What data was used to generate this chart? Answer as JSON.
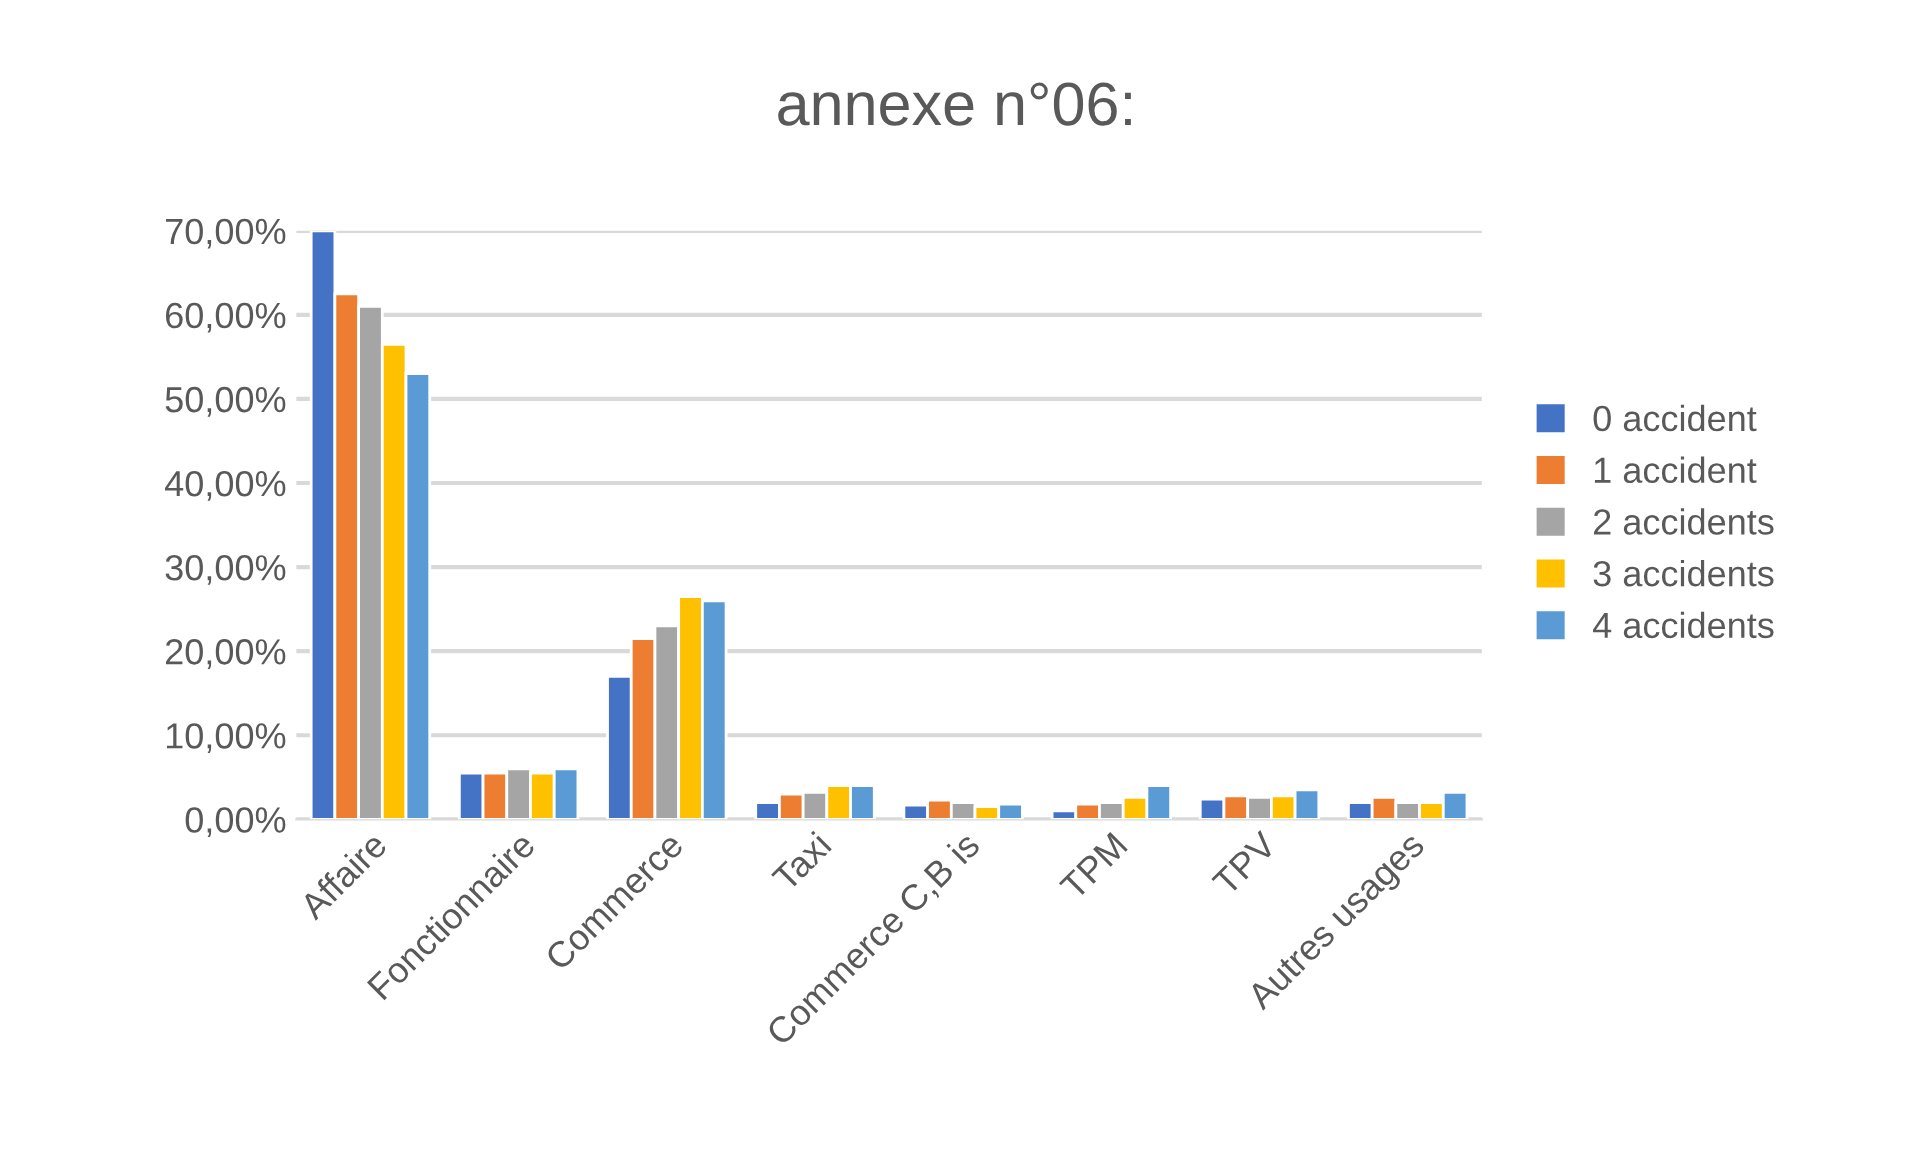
{
  "chart_data": {
    "type": "bar",
    "title": "annexe n°06:",
    "categories": [
      "Affaire",
      "Fonctionnaire",
      "Commerce",
      "Taxi",
      "Commerce C,B is",
      "TPM",
      "TPV",
      "Autres usages"
    ],
    "series": [
      {
        "name": "0 accident",
        "color": "#4472c4",
        "values": [
          70,
          5.5,
          17,
          2,
          1.7,
          1,
          2.4,
          2
        ]
      },
      {
        "name": "1 accident",
        "color": "#ed7d31",
        "values": [
          62.5,
          5.5,
          21.5,
          3,
          2.3,
          1.8,
          2.8,
          2.6
        ]
      },
      {
        "name": "2 accidents",
        "color": "#a5a5a5",
        "values": [
          61,
          6,
          23,
          3.2,
          2,
          2,
          2.6,
          2
        ]
      },
      {
        "name": "3 accidents",
        "color": "#ffc000",
        "values": [
          56.5,
          5.5,
          26.5,
          4,
          1.5,
          2.6,
          2.8,
          2
        ]
      },
      {
        "name": "4 accidents",
        "color": "#5b9bd5",
        "values": [
          53,
          6,
          26,
          4,
          1.8,
          4,
          3.5,
          3.2
        ]
      }
    ],
    "ylim": [
      0,
      70
    ],
    "yticks": [
      {
        "value": 0,
        "label": "0,00%"
      },
      {
        "value": 10,
        "label": "10,00%"
      },
      {
        "value": 20,
        "label": "20,00%"
      },
      {
        "value": 30,
        "label": "30,00%"
      },
      {
        "value": 40,
        "label": "40,00%"
      },
      {
        "value": 50,
        "label": "50,00%"
      },
      {
        "value": 60,
        "label": "60,00%"
      },
      {
        "value": 70,
        "label": "70,00%"
      }
    ],
    "grid": "y",
    "legend": "right"
  }
}
